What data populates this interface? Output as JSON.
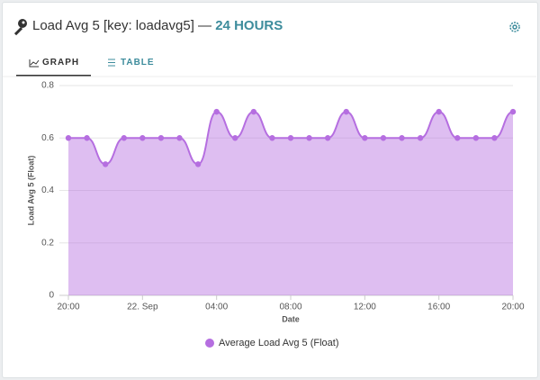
{
  "header": {
    "title": "Load Avg 5 [key: loadavg5]",
    "separator": "—",
    "range": "24 HOURS"
  },
  "tabs": [
    "GRAPH",
    "TABLE"
  ],
  "chart_data": {
    "type": "area",
    "y_label": "Load Avg 5 (Float)",
    "x_label": "Date",
    "categories": [
      "20:00",
      null,
      null,
      null,
      "22. Sep",
      null,
      null,
      null,
      "04:00",
      null,
      null,
      null,
      "08:00",
      null,
      null,
      null,
      "12:00",
      null,
      null,
      null,
      "16:00",
      null,
      null,
      null,
      "20:00"
    ],
    "series": [
      {
        "name": "Average Load Avg 5 (Float)",
        "color": "#b56ee0",
        "values": [
          0.6,
          0.6,
          0.5,
          0.6,
          0.6,
          0.6,
          0.6,
          0.5,
          0.7,
          0.6,
          0.7,
          0.6,
          0.6,
          0.6,
          0.6,
          0.7,
          0.6,
          0.6,
          0.6,
          0.6,
          0.7,
          0.6,
          0.6,
          0.6,
          0.7
        ]
      }
    ],
    "ylim": [
      0,
      0.8
    ],
    "yticks": [
      0,
      0.2,
      0.4,
      0.6,
      0.8
    ],
    "grid": true,
    "legend": "bottom"
  }
}
